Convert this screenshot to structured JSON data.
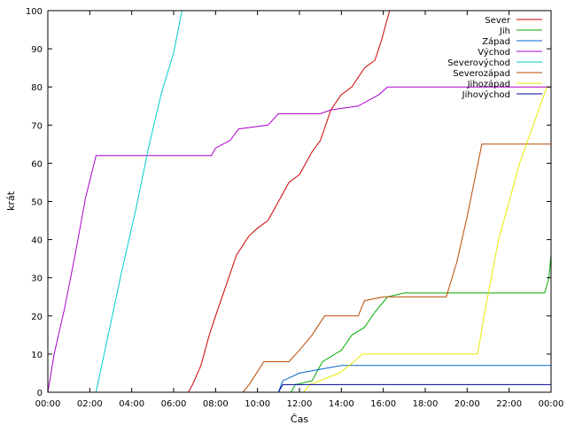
{
  "chart_data": {
    "type": "line",
    "xlabel": "Čas",
    "ylabel": "krát",
    "xlim": [
      0,
      24
    ],
    "ylim": [
      0,
      100
    ],
    "x_ticks": [
      {
        "value": 0,
        "label": "00:00"
      },
      {
        "value": 2,
        "label": "02:00"
      },
      {
        "value": 4,
        "label": "04:00"
      },
      {
        "value": 6,
        "label": "06:00"
      },
      {
        "value": 8,
        "label": "08:00"
      },
      {
        "value": 10,
        "label": "10:00"
      },
      {
        "value": 12,
        "label": "12:00"
      },
      {
        "value": 14,
        "label": "14:00"
      },
      {
        "value": 16,
        "label": "16:00"
      },
      {
        "value": 18,
        "label": "18:00"
      },
      {
        "value": 20,
        "label": "20:00"
      },
      {
        "value": 22,
        "label": "22:00"
      },
      {
        "value": 24,
        "label": "00:00"
      }
    ],
    "y_ticks": [
      0,
      10,
      20,
      30,
      40,
      50,
      60,
      70,
      80,
      90,
      100
    ],
    "grid": false,
    "legend_position": "top-right",
    "series": [
      {
        "name": "Sever",
        "color": "#cc0000",
        "points": [
          [
            0,
            0
          ],
          [
            6.7,
            0
          ],
          [
            6.9,
            2
          ],
          [
            7.3,
            7
          ],
          [
            7.7,
            15
          ],
          [
            8.0,
            20
          ],
          [
            8.5,
            28
          ],
          [
            9.0,
            36
          ],
          [
            9.6,
            41
          ],
          [
            10.0,
            43
          ],
          [
            10.5,
            45
          ],
          [
            11.1,
            51
          ],
          [
            11.5,
            55
          ],
          [
            12.0,
            57
          ],
          [
            12.6,
            63
          ],
          [
            13.0,
            66
          ],
          [
            13.5,
            74
          ],
          [
            14.0,
            78
          ],
          [
            14.5,
            80
          ],
          [
            15.1,
            85
          ],
          [
            15.6,
            87
          ],
          [
            15.9,
            92
          ],
          [
            16.3,
            100
          ]
        ]
      },
      {
        "name": "Jih",
        "color": "#00aa00",
        "points": [
          [
            0,
            0
          ],
          [
            11.6,
            0
          ],
          [
            11.8,
            2
          ],
          [
            12.6,
            3
          ],
          [
            13.1,
            8
          ],
          [
            14.0,
            11
          ],
          [
            14.5,
            15
          ],
          [
            15.1,
            17
          ],
          [
            15.6,
            21
          ],
          [
            16.2,
            25
          ],
          [
            17.0,
            26
          ],
          [
            20.0,
            26
          ],
          [
            23.7,
            26
          ],
          [
            23.9,
            30
          ],
          [
            24,
            36
          ]
        ]
      },
      {
        "name": "Západ",
        "color": "#0066cc",
        "points": [
          [
            0,
            0
          ],
          [
            11.0,
            0
          ],
          [
            11.2,
            3
          ],
          [
            12.0,
            5
          ],
          [
            14.0,
            7
          ],
          [
            24,
            7
          ]
        ]
      },
      {
        "name": "Východ",
        "color": "#aa00cc",
        "points": [
          [
            0,
            0
          ],
          [
            0.3,
            10
          ],
          [
            0.8,
            22
          ],
          [
            1.3,
            36
          ],
          [
            1.8,
            51
          ],
          [
            2.3,
            62
          ],
          [
            7.8,
            62
          ],
          [
            8.0,
            64
          ],
          [
            8.7,
            66
          ],
          [
            9.1,
            69
          ],
          [
            10.5,
            70
          ],
          [
            11.0,
            73
          ],
          [
            13.0,
            73
          ],
          [
            13.5,
            74
          ],
          [
            14.8,
            75
          ],
          [
            15.8,
            78
          ],
          [
            16.2,
            80
          ],
          [
            24,
            80
          ]
        ]
      },
      {
        "name": "Severovýchod",
        "color": "#00cccc",
        "points": [
          [
            0,
            0
          ],
          [
            2.3,
            0
          ],
          [
            2.8,
            13
          ],
          [
            3.5,
            31
          ],
          [
            4.2,
            48
          ],
          [
            4.8,
            64
          ],
          [
            5.4,
            78
          ],
          [
            6.0,
            89
          ],
          [
            6.4,
            100
          ]
        ]
      },
      {
        "name": "Severozápad",
        "color": "#b84800",
        "points": [
          [
            0,
            0
          ],
          [
            9.3,
            0
          ],
          [
            9.6,
            2
          ],
          [
            10.3,
            8
          ],
          [
            11.5,
            8
          ],
          [
            12.0,
            11
          ],
          [
            12.6,
            15
          ],
          [
            13.2,
            20
          ],
          [
            14.8,
            20
          ],
          [
            15.1,
            24
          ],
          [
            16.0,
            25
          ],
          [
            19.0,
            25
          ],
          [
            19.5,
            34
          ],
          [
            20.0,
            46
          ],
          [
            20.7,
            65
          ],
          [
            24,
            65
          ]
        ]
      },
      {
        "name": "Jihozápad",
        "color": "#e8e800",
        "points": [
          [
            0,
            0
          ],
          [
            12.2,
            0
          ],
          [
            12.5,
            2
          ],
          [
            13.9,
            5
          ],
          [
            14.6,
            8
          ],
          [
            15.0,
            10
          ],
          [
            20.5,
            10
          ],
          [
            20.8,
            20
          ],
          [
            21.5,
            40
          ],
          [
            22.5,
            60
          ],
          [
            23.8,
            80
          ]
        ]
      },
      {
        "name": "Jihovýchod",
        "color": "#000099",
        "points": [
          [
            0,
            0
          ],
          [
            11.0,
            0
          ],
          [
            11.2,
            2
          ],
          [
            24,
            2
          ]
        ]
      }
    ]
  }
}
